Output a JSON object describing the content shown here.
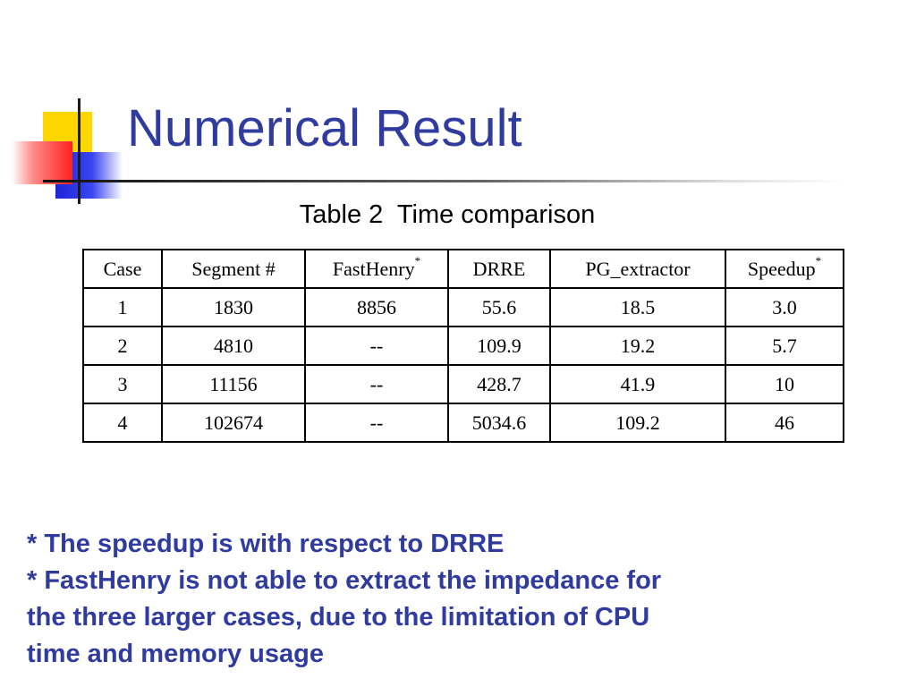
{
  "slide": {
    "title": "Numerical Result",
    "caption": "Table 2  Time comparison"
  },
  "table": {
    "headers": [
      {
        "text": "Case",
        "sup": ""
      },
      {
        "text": "Segment #",
        "sup": ""
      },
      {
        "text": "FastHenry",
        "sup": "*"
      },
      {
        "text": "DRRE",
        "sup": ""
      },
      {
        "text": "PG_extractor",
        "sup": ""
      },
      {
        "text": "Speedup",
        "sup": "*"
      }
    ],
    "rows": [
      [
        "1",
        "1830",
        "8856",
        "55.6",
        "18.5",
        "3.0"
      ],
      [
        "2",
        "4810",
        "--",
        "109.9",
        "19.2",
        "5.7"
      ],
      [
        "3",
        "11156",
        "--",
        "428.7",
        "41.9",
        "10"
      ],
      [
        "4",
        "102674",
        "--",
        "5034.6",
        "109.2",
        "46"
      ]
    ]
  },
  "notes": [
    "* The speedup is with respect to DRRE",
    "* FastHenry is not able to extract the impedance for",
    "the three larger cases, due to the limitation of CPU",
    "time and memory usage"
  ],
  "colors": {
    "title": "#2f3b9f",
    "accent_yellow": "#ffd700",
    "accent_blue": "#1c25d8",
    "accent_red": "#ff2020"
  }
}
